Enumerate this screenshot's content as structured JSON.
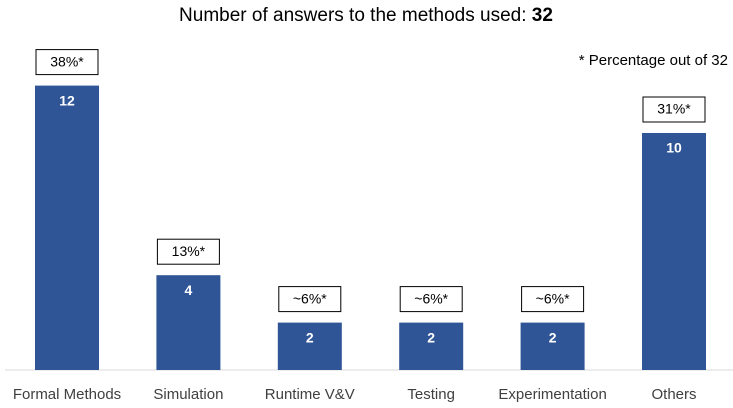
{
  "chart_data": {
    "type": "bar",
    "title": "Number of answers to the methods used:",
    "total": 32,
    "annotation": "* Percentage out of 32",
    "categories": [
      "Formal Methods",
      "Simulation",
      "Runtime V&V",
      "Testing",
      "Experimentation",
      "Others"
    ],
    "values": [
      12,
      4,
      2,
      2,
      2,
      10
    ],
    "percent_labels": [
      "38%*",
      "13%*",
      "~6%*",
      "~6%*",
      "~6%*",
      "31%*"
    ],
    "color": "#2f5597"
  }
}
